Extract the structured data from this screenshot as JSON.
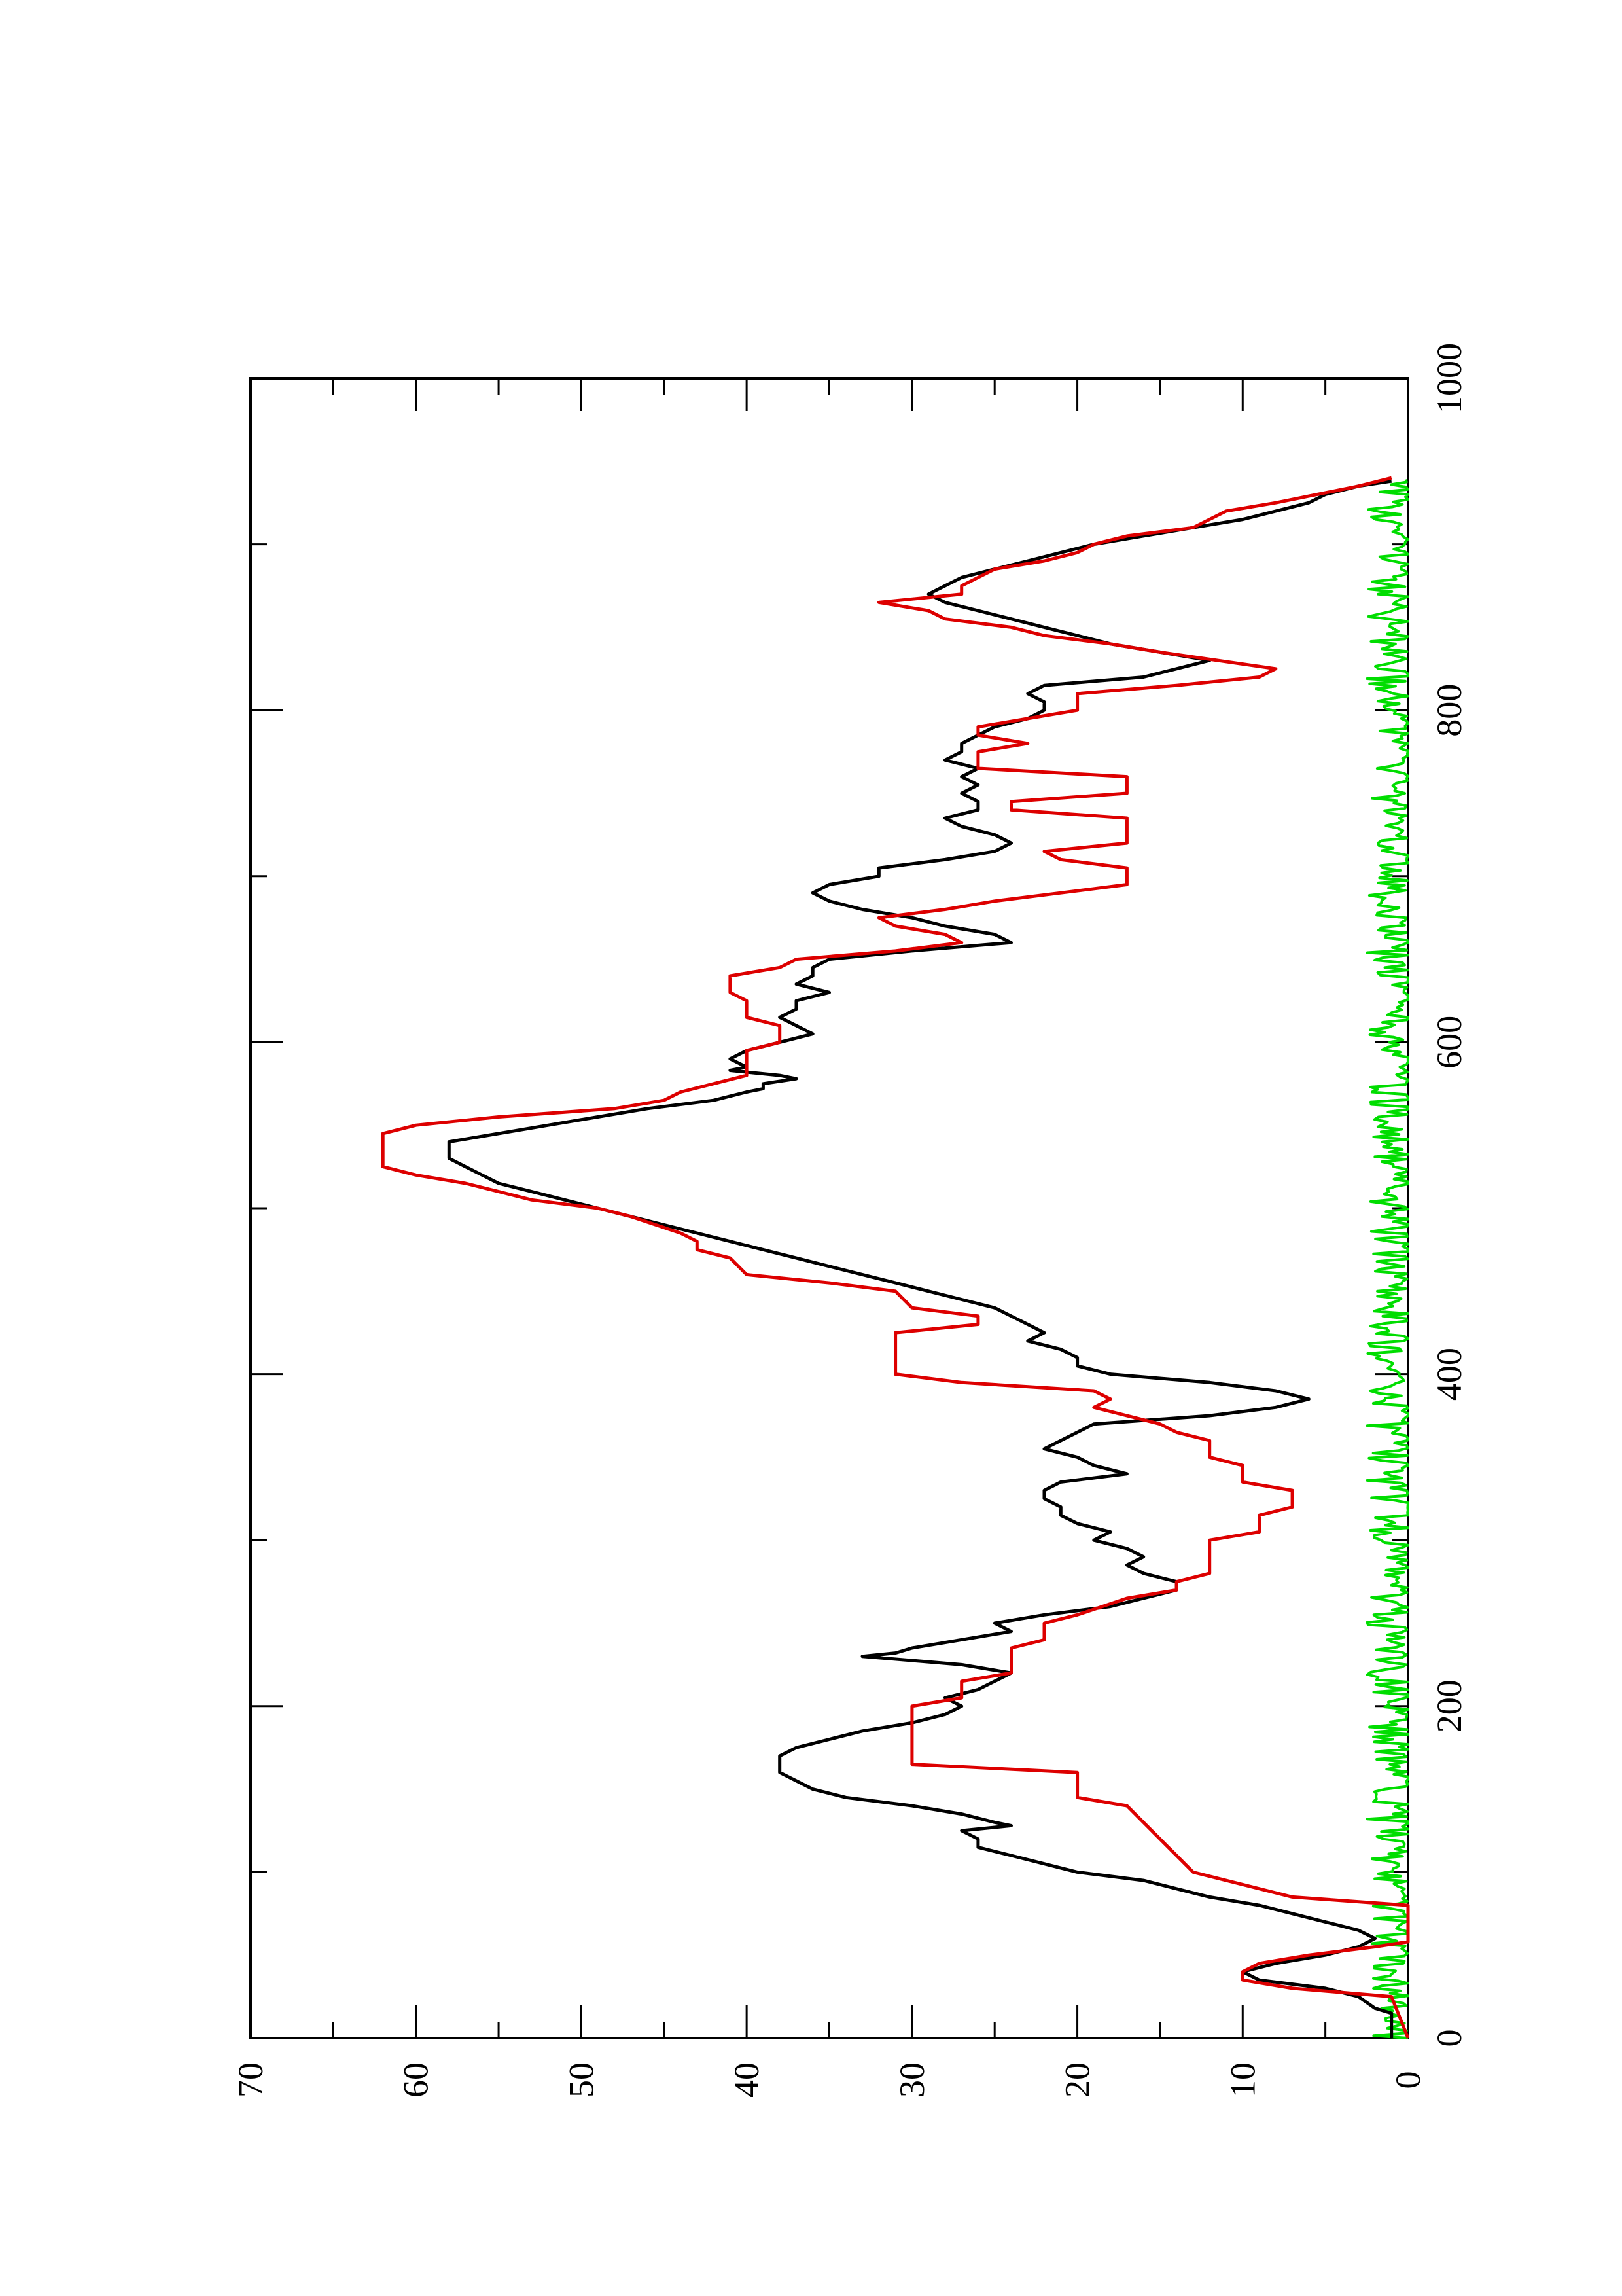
{
  "chart_data": {
    "type": "line",
    "title": "",
    "xlabel": "",
    "ylabel": "",
    "xlim": [
      0,
      1000
    ],
    "ylim": [
      0,
      70
    ],
    "x_ticks": [
      0,
      200,
      400,
      600,
      800,
      1000
    ],
    "y_ticks": [
      0,
      10,
      20,
      30,
      40,
      50,
      60,
      70
    ],
    "x_tick_labels": [
      "0",
      "200",
      "400",
      "600",
      "800",
      "1000"
    ],
    "y_tick_labels": [
      "0",
      "10",
      "20",
      "30",
      "40",
      "50",
      "60",
      "70"
    ],
    "grid": false,
    "legend": "none",
    "orientation": "rotated-90-counterclockwise",
    "colors": {
      "black_series": "#000000",
      "red_series": "#dd0000",
      "green_series": "#00dd00"
    },
    "series": [
      {
        "color": "#000000",
        "points": [
          [
            0,
            1
          ],
          [
            15,
            1
          ],
          [
            18,
            2
          ],
          [
            25,
            3
          ],
          [
            30,
            5
          ],
          [
            35,
            9
          ],
          [
            40,
            10
          ],
          [
            45,
            8
          ],
          [
            50,
            5
          ],
          [
            55,
            3
          ],
          [
            60,
            2
          ],
          [
            65,
            3
          ],
          [
            70,
            5
          ],
          [
            75,
            7
          ],
          [
            80,
            9
          ],
          [
            85,
            12
          ],
          [
            90,
            14
          ],
          [
            95,
            16
          ],
          [
            100,
            20
          ],
          [
            105,
            22
          ],
          [
            110,
            24
          ],
          [
            115,
            26
          ],
          [
            120,
            26
          ],
          [
            125,
            27
          ],
          [
            128,
            24
          ],
          [
            130,
            25
          ],
          [
            135,
            27
          ],
          [
            140,
            30
          ],
          [
            145,
            34
          ],
          [
            150,
            36
          ],
          [
            155,
            37
          ],
          [
            160,
            38
          ],
          [
            165,
            38
          ],
          [
            170,
            38
          ],
          [
            175,
            37
          ],
          [
            180,
            35
          ],
          [
            185,
            33
          ],
          [
            190,
            30
          ],
          [
            195,
            28
          ],
          [
            200,
            27
          ],
          [
            205,
            28
          ],
          [
            210,
            26
          ],
          [
            215,
            25
          ],
          [
            220,
            24
          ],
          [
            225,
            27
          ],
          [
            230,
            33
          ],
          [
            232,
            31
          ],
          [
            235,
            30
          ],
          [
            240,
            27
          ],
          [
            245,
            24
          ],
          [
            250,
            25
          ],
          [
            255,
            22
          ],
          [
            260,
            18
          ],
          [
            265,
            16
          ],
          [
            270,
            14
          ],
          [
            275,
            14
          ],
          [
            280,
            16
          ],
          [
            285,
            17
          ],
          [
            290,
            16
          ],
          [
            295,
            17
          ],
          [
            300,
            19
          ],
          [
            305,
            18
          ],
          [
            310,
            20
          ],
          [
            315,
            21
          ],
          [
            320,
            21
          ],
          [
            325,
            22
          ],
          [
            330,
            22
          ],
          [
            335,
            21
          ],
          [
            340,
            17
          ],
          [
            345,
            19
          ],
          [
            350,
            20
          ],
          [
            355,
            22
          ],
          [
            360,
            21
          ],
          [
            365,
            20
          ],
          [
            370,
            19
          ],
          [
            375,
            12
          ],
          [
            380,
            8
          ],
          [
            385,
            6
          ],
          [
            390,
            8
          ],
          [
            395,
            12
          ],
          [
            400,
            18
          ],
          [
            405,
            20
          ],
          [
            410,
            20
          ],
          [
            415,
            21
          ],
          [
            420,
            23
          ],
          [
            425,
            22
          ],
          [
            430,
            23
          ],
          [
            435,
            24
          ],
          [
            440,
            25
          ],
          [
            445,
            27
          ],
          [
            450,
            29
          ],
          [
            455,
            31
          ],
          [
            460,
            33
          ],
          [
            465,
            35
          ],
          [
            470,
            37
          ],
          [
            475,
            39
          ],
          [
            480,
            41
          ],
          [
            485,
            43
          ],
          [
            490,
            45
          ],
          [
            495,
            47
          ],
          [
            500,
            49
          ],
          [
            505,
            51
          ],
          [
            510,
            53
          ],
          [
            515,
            55
          ],
          [
            520,
            56
          ],
          [
            525,
            57
          ],
          [
            530,
            58
          ],
          [
            540,
            58
          ],
          [
            545,
            55
          ],
          [
            550,
            52
          ],
          [
            555,
            49
          ],
          [
            560,
            46
          ],
          [
            565,
            42
          ],
          [
            570,
            40
          ],
          [
            572,
            39
          ],
          [
            575,
            39
          ],
          [
            578,
            37
          ],
          [
            580,
            38
          ],
          [
            583,
            41
          ],
          [
            585,
            40
          ],
          [
            590,
            41
          ],
          [
            595,
            40
          ],
          [
            600,
            38
          ],
          [
            605,
            36
          ],
          [
            610,
            37
          ],
          [
            615,
            38
          ],
          [
            620,
            37
          ],
          [
            625,
            37
          ],
          [
            630,
            35
          ],
          [
            635,
            37
          ],
          [
            640,
            36
          ],
          [
            645,
            36
          ],
          [
            650,
            35
          ],
          [
            655,
            30
          ],
          [
            660,
            24
          ],
          [
            665,
            25
          ],
          [
            670,
            28
          ],
          [
            675,
            30
          ],
          [
            680,
            33
          ],
          [
            685,
            35
          ],
          [
            690,
            36
          ],
          [
            695,
            35
          ],
          [
            700,
            32
          ],
          [
            705,
            32
          ],
          [
            710,
            28
          ],
          [
            715,
            25
          ],
          [
            720,
            24
          ],
          [
            725,
            25
          ],
          [
            730,
            27
          ],
          [
            735,
            28
          ],
          [
            740,
            26
          ],
          [
            745,
            26
          ],
          [
            750,
            27
          ],
          [
            755,
            26
          ],
          [
            760,
            27
          ],
          [
            765,
            26
          ],
          [
            770,
            28
          ],
          [
            775,
            27
          ],
          [
            780,
            27
          ],
          [
            785,
            26
          ],
          [
            790,
            25
          ],
          [
            795,
            23
          ],
          [
            800,
            22
          ],
          [
            805,
            22
          ],
          [
            810,
            23
          ],
          [
            815,
            22
          ],
          [
            820,
            16
          ],
          [
            825,
            14
          ],
          [
            830,
            12
          ],
          [
            835,
            15
          ],
          [
            840,
            18
          ],
          [
            845,
            20
          ],
          [
            850,
            22
          ],
          [
            855,
            24
          ],
          [
            860,
            26
          ],
          [
            865,
            28
          ],
          [
            870,
            29
          ],
          [
            875,
            28
          ],
          [
            880,
            27
          ],
          [
            885,
            25
          ],
          [
            890,
            23
          ],
          [
            895,
            21
          ],
          [
            900,
            19
          ],
          [
            905,
            16
          ],
          [
            910,
            13
          ],
          [
            915,
            10
          ],
          [
            920,
            8
          ],
          [
            925,
            6
          ],
          [
            930,
            5
          ],
          [
            935,
            3
          ],
          [
            938,
            1
          ]
        ]
      },
      {
        "color": "#dd0000",
        "points": [
          [
            0,
            0
          ],
          [
            25,
            1
          ],
          [
            30,
            7
          ],
          [
            35,
            10
          ],
          [
            40,
            10
          ],
          [
            45,
            9
          ],
          [
            50,
            6
          ],
          [
            55,
            2
          ],
          [
            58,
            0
          ],
          [
            80,
            0
          ],
          [
            85,
            7
          ],
          [
            100,
            13
          ],
          [
            120,
            15
          ],
          [
            140,
            17
          ],
          [
            145,
            20
          ],
          [
            160,
            20
          ],
          [
            165,
            30
          ],
          [
            200,
            30
          ],
          [
            205,
            27
          ],
          [
            215,
            27
          ],
          [
            220,
            24
          ],
          [
            235,
            24
          ],
          [
            240,
            22
          ],
          [
            250,
            22
          ],
          [
            255,
            20
          ],
          [
            265,
            17
          ],
          [
            270,
            14
          ],
          [
            275,
            14
          ],
          [
            280,
            12
          ],
          [
            300,
            12
          ],
          [
            305,
            9
          ],
          [
            315,
            9
          ],
          [
            320,
            7
          ],
          [
            330,
            7
          ],
          [
            335,
            10
          ],
          [
            345,
            10
          ],
          [
            350,
            12
          ],
          [
            360,
            12
          ],
          [
            365,
            14
          ],
          [
            370,
            15
          ],
          [
            380,
            19
          ],
          [
            385,
            18
          ],
          [
            390,
            19
          ],
          [
            395,
            27
          ],
          [
            400,
            31
          ],
          [
            420,
            31
          ],
          [
            425,
            31
          ],
          [
            430,
            26
          ],
          [
            435,
            26
          ],
          [
            440,
            30
          ],
          [
            450,
            31
          ],
          [
            455,
            35
          ],
          [
            460,
            40
          ],
          [
            470,
            41
          ],
          [
            475,
            43
          ],
          [
            480,
            43
          ],
          [
            485,
            44
          ],
          [
            495,
            47
          ],
          [
            500,
            49
          ],
          [
            505,
            53
          ],
          [
            510,
            55
          ],
          [
            515,
            57
          ],
          [
            520,
            60
          ],
          [
            525,
            62
          ],
          [
            530,
            62
          ],
          [
            540,
            62
          ],
          [
            545,
            62
          ],
          [
            550,
            60
          ],
          [
            555,
            55
          ],
          [
            560,
            48
          ],
          [
            565,
            45
          ],
          [
            570,
            44
          ],
          [
            575,
            42
          ],
          [
            580,
            40
          ],
          [
            590,
            40
          ],
          [
            595,
            40
          ],
          [
            600,
            38
          ],
          [
            610,
            38
          ],
          [
            615,
            40
          ],
          [
            625,
            40
          ],
          [
            630,
            41
          ],
          [
            640,
            41
          ],
          [
            645,
            38
          ],
          [
            650,
            37
          ],
          [
            655,
            31
          ],
          [
            660,
            27
          ],
          [
            665,
            28
          ],
          [
            670,
            31
          ],
          [
            675,
            32
          ],
          [
            680,
            28
          ],
          [
            685,
            25
          ],
          [
            690,
            21
          ],
          [
            695,
            17
          ],
          [
            705,
            17
          ],
          [
            710,
            21
          ],
          [
            715,
            22
          ],
          [
            720,
            17
          ],
          [
            735,
            17
          ],
          [
            740,
            24
          ],
          [
            745,
            24
          ],
          [
            750,
            17
          ],
          [
            760,
            17
          ],
          [
            765,
            26
          ],
          [
            770,
            26
          ],
          [
            775,
            26
          ],
          [
            780,
            23
          ],
          [
            785,
            26
          ],
          [
            790,
            26
          ],
          [
            795,
            23
          ],
          [
            800,
            20
          ],
          [
            810,
            20
          ],
          [
            815,
            14
          ],
          [
            820,
            9
          ],
          [
            825,
            8
          ],
          [
            835,
            15
          ],
          [
            840,
            18
          ],
          [
            845,
            22
          ],
          [
            850,
            24
          ],
          [
            855,
            28
          ],
          [
            860,
            29
          ],
          [
            865,
            32
          ],
          [
            870,
            27
          ],
          [
            875,
            27
          ],
          [
            880,
            26
          ],
          [
            885,
            25
          ],
          [
            890,
            22
          ],
          [
            895,
            20
          ],
          [
            900,
            19
          ],
          [
            905,
            17
          ],
          [
            910,
            13
          ],
          [
            920,
            11
          ],
          [
            925,
            8
          ],
          [
            935,
            3
          ],
          [
            940,
            1
          ]
        ]
      },
      {
        "color": "#00dd00",
        "style": "noise",
        "x_range": [
          0,
          940
        ],
        "y_range": [
          0,
          2.5
        ]
      }
    ]
  }
}
